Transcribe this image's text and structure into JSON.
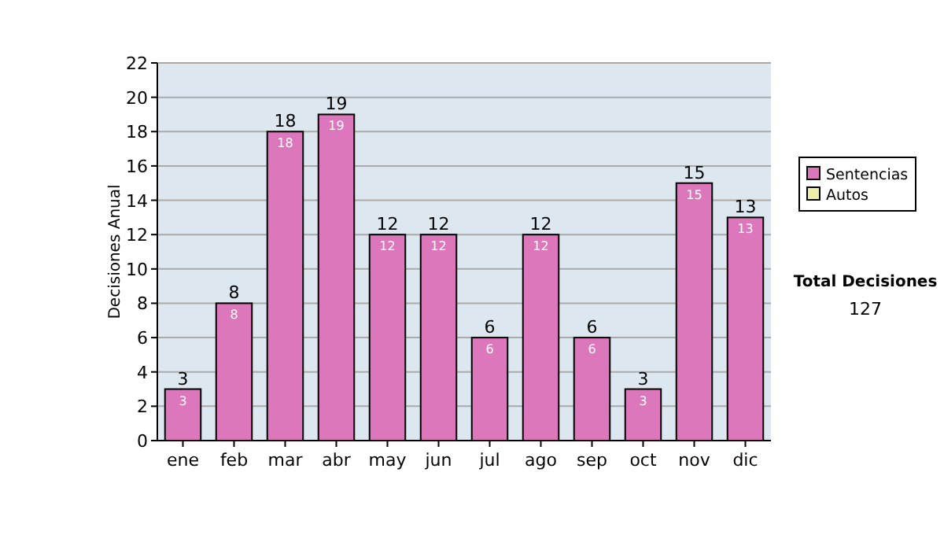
{
  "chart_data": {
    "type": "bar",
    "ylabel": "Decisiones Anual",
    "categories": [
      "ene",
      "feb",
      "mar",
      "abr",
      "may",
      "jun",
      "jul",
      "ago",
      "sep",
      "oct",
      "nov",
      "dic"
    ],
    "series": [
      {
        "name": "Sentencias",
        "color": "#dd77bb",
        "values": [
          3,
          8,
          18,
          19,
          12,
          12,
          6,
          12,
          6,
          3,
          15,
          13
        ]
      },
      {
        "name": "Autos",
        "color": "#eeeeaa",
        "values": [
          null,
          null,
          null,
          null,
          null,
          null,
          null,
          null,
          null,
          null,
          null,
          null
        ]
      }
    ],
    "stacked": true,
    "totals": [
      "3",
      "8",
      "18",
      "19",
      "12",
      "12",
      "6",
      "12",
      "6",
      "3",
      "15",
      "13"
    ],
    "data_labels": true,
    "ylim": [
      0,
      22
    ],
    "yticks": [
      0,
      2,
      4,
      6,
      8,
      10,
      12,
      14,
      16,
      18,
      20,
      22
    ],
    "grid": "y",
    "legend": "right",
    "annotations": [
      "Total Decisiones",
      "127"
    ]
  }
}
